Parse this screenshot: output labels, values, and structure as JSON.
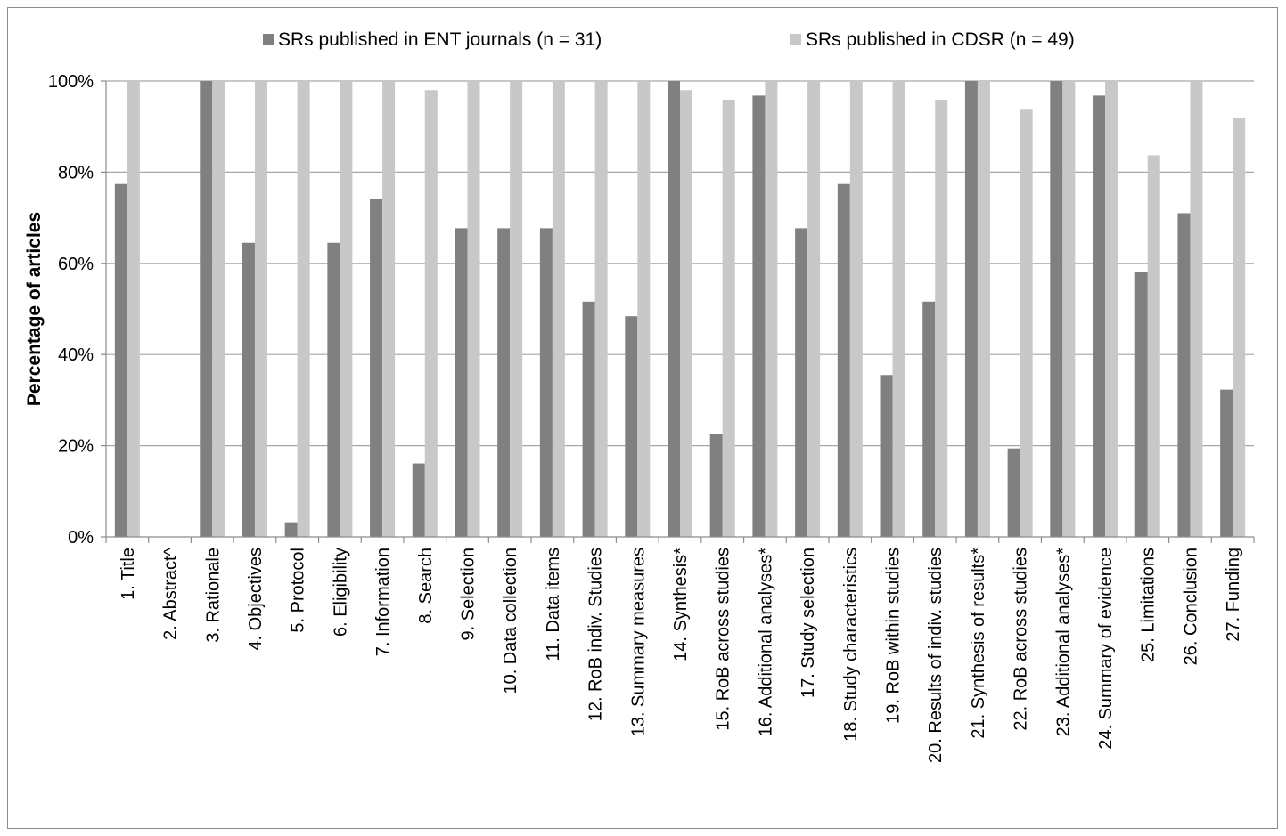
{
  "chart_data": {
    "type": "bar",
    "title": "",
    "xlabel": "",
    "ylabel": "Percentage of articles",
    "ylim": [
      0,
      100
    ],
    "yticks": [
      0,
      20,
      40,
      60,
      80,
      100
    ],
    "ytick_labels": [
      "0%",
      "20%",
      "40%",
      "60%",
      "80%",
      "100%"
    ],
    "grid": true,
    "legend_position": "top",
    "categories": [
      "1. Title",
      "2. Abstract^",
      "3. Rationale",
      "4. Objectives",
      "5. Protocol",
      "6. Eligibility",
      "7. Information",
      "8. Search",
      "9. Selection",
      "10. Data collection",
      "11. Data items",
      "12. RoB indiv. Studies",
      "13. Summary measures",
      "14. Synthesis*",
      "15. RoB across studies",
      "16. Additional analyses*",
      "17. Study selection",
      "18. Study characteristics",
      "19. RoB within studies",
      "20. Results of indiv. studies",
      "21. Synthesis of results*",
      "22. RoB across studies",
      "23. Additional analyses*",
      "24. Summary of evidence",
      "25. Limitations",
      "26. Conclusion",
      "27. Funding"
    ],
    "series": [
      {
        "name": "SRs published in ENT journals (n = 31)",
        "color": "#808080",
        "values": [
          77.4,
          0,
          100,
          64.5,
          3.2,
          64.5,
          74.2,
          16.1,
          67.7,
          67.7,
          67.7,
          51.6,
          48.4,
          100,
          22.6,
          96.8,
          67.7,
          77.4,
          35.5,
          51.6,
          100,
          19.4,
          100,
          96.8,
          58.1,
          71.0,
          32.3
        ]
      },
      {
        "name": "SRs published in CDSR (n = 49)",
        "color": "#c8c8c8",
        "values": [
          100,
          0,
          100,
          100,
          100,
          100,
          100,
          98.0,
          100,
          100,
          100,
          100,
          100,
          98.0,
          95.9,
          100,
          100,
          100,
          100,
          95.9,
          100,
          93.9,
          100,
          100,
          83.7,
          100,
          91.8
        ]
      }
    ]
  }
}
